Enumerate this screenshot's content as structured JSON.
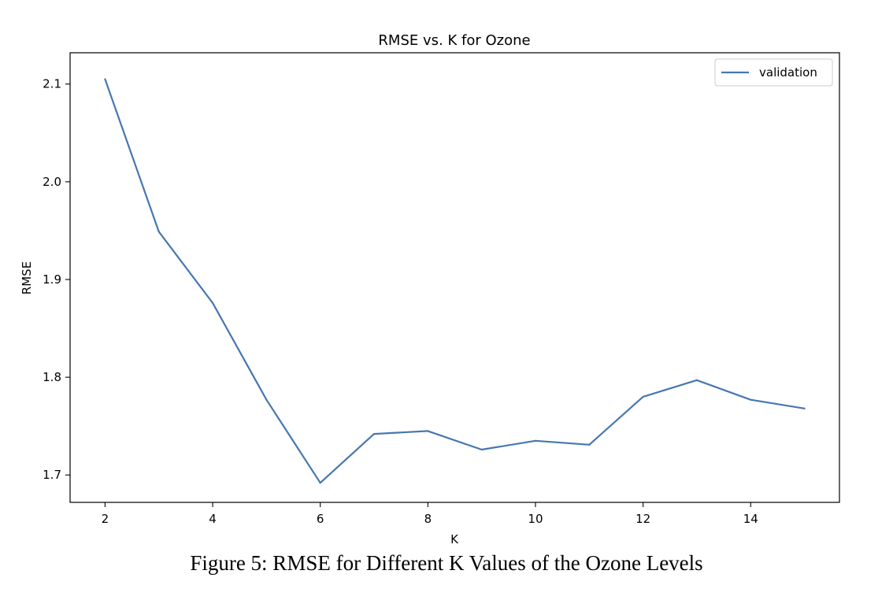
{
  "chart_data": {
    "type": "line",
    "title": "RMSE vs. K for Ozone",
    "xlabel": "K",
    "ylabel": "RMSE",
    "xlim": [
      1.35,
      15.65
    ],
    "ylim": [
      1.672,
      2.132
    ],
    "xticks": [
      2,
      4,
      6,
      8,
      10,
      12,
      14
    ],
    "yticks": [
      1.7,
      1.8,
      1.9,
      2.0,
      2.1
    ],
    "ytick_labels": [
      "1.7",
      "1.8",
      "1.9",
      "2.0",
      "2.1"
    ],
    "grid": false,
    "legend": "top-right",
    "x": [
      2,
      3,
      4,
      5,
      6,
      7,
      8,
      9,
      10,
      11,
      12,
      13,
      14,
      15
    ],
    "series": [
      {
        "name": "validation",
        "color": "#4677b0",
        "values": [
          2.105,
          1.949,
          1.876,
          1.777,
          1.692,
          1.742,
          1.745,
          1.726,
          1.735,
          1.731,
          1.78,
          1.797,
          1.777,
          1.768
        ]
      }
    ]
  },
  "caption": "Figure 5: RMSE for Different K Values of the Ozone Levels"
}
